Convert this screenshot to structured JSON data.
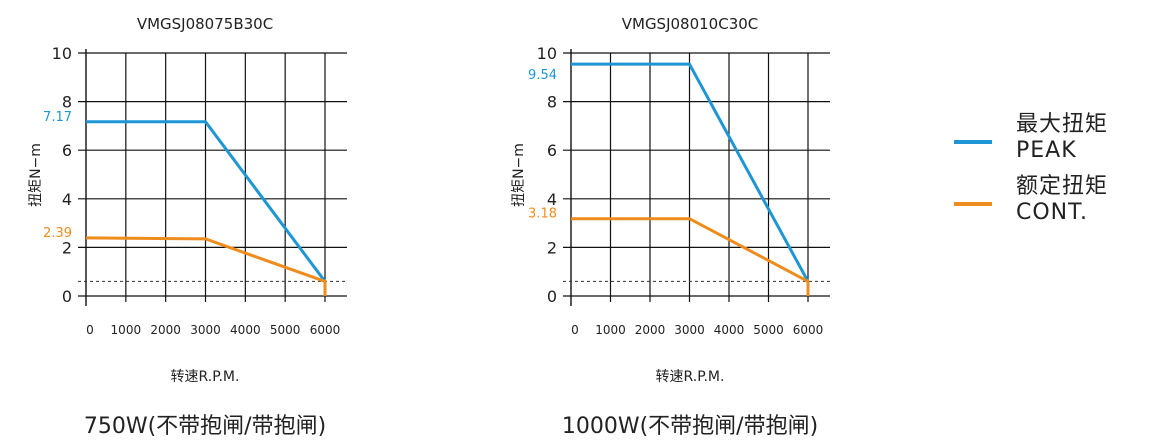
{
  "colors": {
    "peak": "#1e96d6",
    "cont": "#ef8c1e",
    "axis": "#111111"
  },
  "legend": {
    "peak": {
      "label_cn": "最大扭矩",
      "label_en": "PEAK"
    },
    "cont": {
      "label_cn": "额定扭矩",
      "label_en": "CONT."
    }
  },
  "chart_data": [
    {
      "type": "line",
      "title": "VMGSJ08075B30C",
      "caption": "750W(不带抱闸/带抱闸)",
      "xlabel": "转速R.P.M.",
      "ylabel": "扭矩N−m",
      "xlim": [
        0,
        6000
      ],
      "ylim": [
        0,
        10
      ],
      "x_ticks": [
        0,
        1000,
        2000,
        3000,
        4000,
        5000,
        6000
      ],
      "y_ticks": [
        0,
        2,
        4,
        6,
        8,
        10
      ],
      "grid": true,
      "dashed_reference_y": 0.6,
      "series": [
        {
          "name": "最大扭矩 PEAK",
          "key": "peak",
          "x": [
            0,
            3000,
            6000
          ],
          "y": [
            7.17,
            7.17,
            0.6
          ]
        },
        {
          "name": "额定扭矩 CONT.",
          "key": "cont",
          "x": [
            0,
            3000,
            6000,
            6000
          ],
          "y": [
            2.39,
            2.35,
            0.6,
            0
          ]
        }
      ],
      "annotations": [
        {
          "text": "7.17",
          "key": "peak",
          "y": 7.17
        },
        {
          "text": "2.39",
          "key": "cont",
          "y": 2.39
        }
      ]
    },
    {
      "type": "line",
      "title": "VMGSJ08010C30C",
      "caption": "1000W(不带抱闸/带抱闸)",
      "xlabel": "转速R.P.M.",
      "ylabel": "扭矩N−m",
      "xlim": [
        0,
        6000
      ],
      "ylim": [
        0,
        10
      ],
      "x_ticks": [
        0,
        1000,
        2000,
        3000,
        4000,
        5000,
        6000
      ],
      "y_ticks": [
        0,
        2,
        4,
        6,
        8,
        10
      ],
      "grid": true,
      "dashed_reference_y": 0.6,
      "series": [
        {
          "name": "最大扭矩 PEAK",
          "key": "peak",
          "x": [
            0,
            3000,
            6000
          ],
          "y": [
            9.54,
            9.54,
            0.6
          ]
        },
        {
          "name": "额定扭矩 CONT.",
          "key": "cont",
          "x": [
            0,
            3000,
            6000,
            6000
          ],
          "y": [
            3.18,
            3.18,
            0.6,
            0
          ]
        }
      ],
      "annotations": [
        {
          "text": "9.54",
          "key": "peak",
          "y": 9.54
        },
        {
          "text": "3.18",
          "key": "cont",
          "y": 3.18
        }
      ]
    }
  ]
}
